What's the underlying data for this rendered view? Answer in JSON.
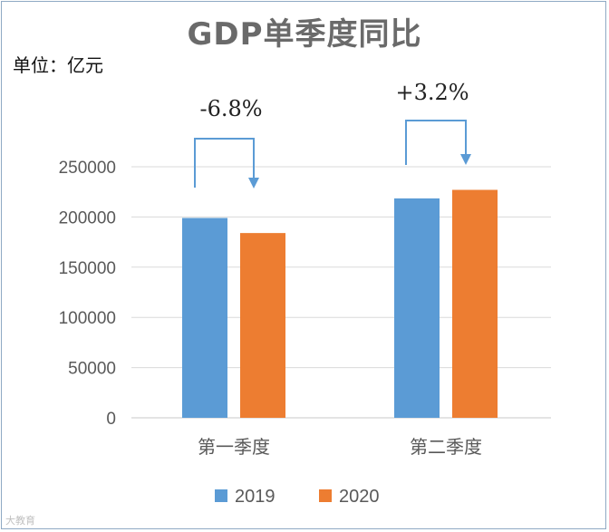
{
  "chart_data": {
    "type": "bar",
    "title": "GDP单季度同比",
    "unit_label": "单位：亿元",
    "categories": [
      "第一季度",
      "第二季度"
    ],
    "series": [
      {
        "name": "2019",
        "values": [
          199000,
          218500
        ],
        "color": "#5b9bd5"
      },
      {
        "name": "2020",
        "values": [
          184000,
          227000
        ],
        "color": "#ed7d31"
      }
    ],
    "ylim": [
      0,
      250000
    ],
    "yticks": [
      0,
      50000,
      100000,
      150000,
      200000,
      250000
    ],
    "grid": true,
    "legend_position": "bottom",
    "annotations": [
      "-6.8%",
      "+3.2%"
    ],
    "arrow_color": "#5b9bd5"
  },
  "watermark": "大教育"
}
